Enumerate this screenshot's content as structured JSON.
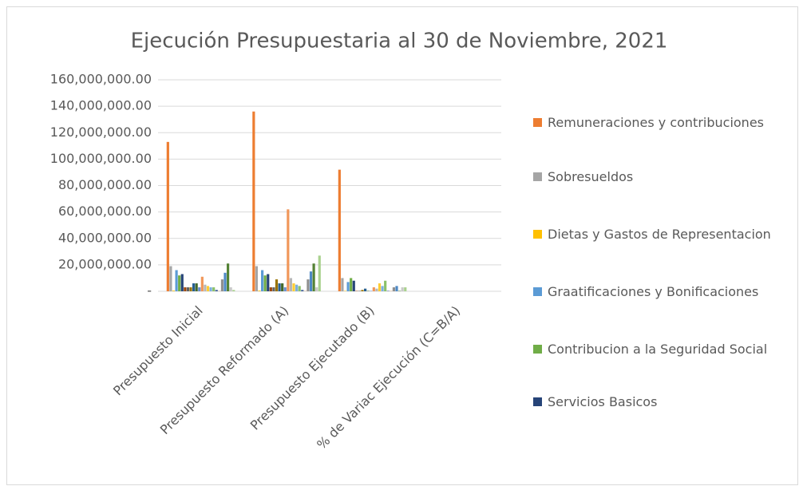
{
  "chart_data": {
    "type": "bar",
    "title": "Ejecución Presupuestaria al 30 de Noviembre, 2021",
    "categories": [
      "Presupuesto Inicial",
      "Presupuesto Reformado (A)",
      "Presupuesto Ejecutado (B)",
      "% de Variac Ejecución (C=B/A)"
    ],
    "ylim": [
      0,
      160000000
    ],
    "yticks": [
      {
        "value": 0,
        "label": "-"
      },
      {
        "value": 20000000,
        "label": "20,000,000.00"
      },
      {
        "value": 40000000,
        "label": "40,000,000.00"
      },
      {
        "value": 60000000,
        "label": "60,000,000.00"
      },
      {
        "value": 80000000,
        "label": "80,000,000.00"
      },
      {
        "value": 100000000,
        "label": "100,000,000.00"
      },
      {
        "value": 120000000,
        "label": "120,000,000.00"
      },
      {
        "value": 140000000,
        "label": "140,000,000.00"
      },
      {
        "value": 160000000,
        "label": "160,000,000.00"
      }
    ],
    "grid": true,
    "series": [
      {
        "name": "Remuneraciones y contribuciones",
        "color": "#ed7d31",
        "values": [
          113000000,
          136000000,
          92000000,
          0
        ]
      },
      {
        "name": "Sobresueldos",
        "color": "#a5a5a5",
        "values": [
          19000000,
          19000000,
          10000000,
          0
        ]
      },
      {
        "name": "Dietas y Gastos de Representacion",
        "color": "#ffc000",
        "values": [
          500000,
          500000,
          300000,
          0
        ]
      },
      {
        "name": "Graatificaciones y Bonificaciones",
        "color": "#5b9bd5",
        "values": [
          16000000,
          16000000,
          7000000,
          0
        ]
      },
      {
        "name": "Contribucion a la Seguridad Social",
        "color": "#70ad47",
        "values": [
          12000000,
          12000000,
          10000000,
          0
        ]
      },
      {
        "name": "Servicios Basicos",
        "color": "#264478",
        "values": [
          13000000,
          13000000,
          8000000,
          0
        ]
      },
      {
        "color": "#9e480e",
        "values": [
          3000000,
          3000000,
          300000,
          0
        ]
      },
      {
        "color": "#636363",
        "values": [
          3000000,
          3000000,
          300000,
          0
        ]
      },
      {
        "color": "#997300",
        "values": [
          3000000,
          9000000,
          1000000,
          0
        ]
      },
      {
        "color": "#255e91",
        "values": [
          6000000,
          6000000,
          2000000,
          0
        ]
      },
      {
        "color": "#43682b",
        "values": [
          6000000,
          6000000,
          300000,
          0
        ]
      },
      {
        "color": "#698ed0",
        "values": [
          3000000,
          3000000,
          300000,
          0
        ]
      },
      {
        "color": "#f1975a",
        "values": [
          11000000,
          62000000,
          3000000,
          0
        ]
      },
      {
        "color": "#b7b7b7",
        "values": [
          5000000,
          10000000,
          2000000,
          0
        ]
      },
      {
        "color": "#ffcd33",
        "values": [
          4000000,
          6000000,
          6000000,
          0
        ]
      },
      {
        "color": "#7cafdd",
        "values": [
          3000000,
          5000000,
          4000000,
          0
        ]
      },
      {
        "color": "#8cc168",
        "values": [
          3000000,
          4000000,
          8000000,
          0
        ]
      },
      {
        "color": "#3a5b94",
        "values": [
          1000000,
          1000000,
          300000,
          0
        ]
      },
      {
        "color": "#d0af8b",
        "values": [
          300000,
          300000,
          300000,
          0
        ]
      },
      {
        "color": "#8f8f8f",
        "values": [
          9000000,
          9000000,
          3000000,
          0
        ]
      },
      {
        "color": "#4d88c4",
        "values": [
          14000000,
          15000000,
          4000000,
          0
        ]
      },
      {
        "color": "#548235",
        "values": [
          21000000,
          21000000,
          300000,
          0
        ]
      },
      {
        "color": "#c9c9c9",
        "values": [
          3000000,
          3000000,
          3000000,
          0
        ]
      },
      {
        "color": "#a9d18e",
        "values": [
          1000000,
          27000000,
          3000000,
          0
        ]
      }
    ]
  }
}
